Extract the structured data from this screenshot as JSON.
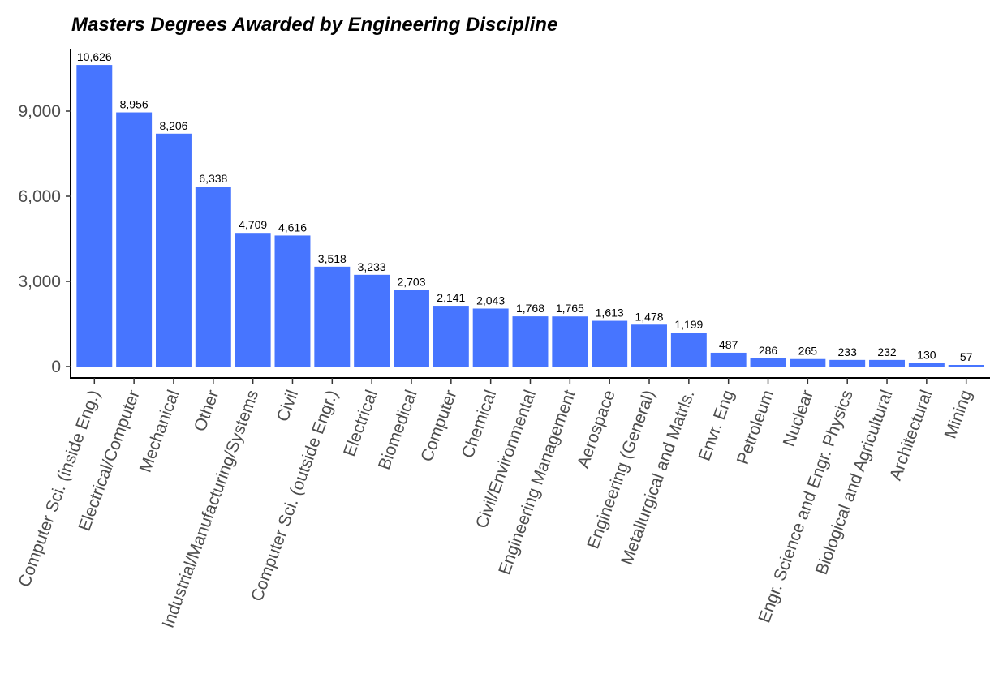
{
  "chart_data": {
    "type": "bar",
    "title": "Masters Degrees Awarded by Engineering Discipline",
    "xlabel": "",
    "ylabel": "",
    "categories": [
      "Computer Sci. (inside Eng.)",
      "Electrical/Computer",
      "Mechanical",
      "Other",
      "Industrial/Manufacturing/Systems",
      "Civil",
      "Computer Sci. (outside Engr.)",
      "Electrical",
      "Biomedical",
      "Computer",
      "Chemical",
      "Civil/Environmental",
      "Engineering Management",
      "Aerospace",
      "Engineering (General)",
      "Metallurgical and Matrls.",
      "Envr. Eng",
      "Petroleum",
      "Nuclear",
      "Engr. Science and Engr. Physics",
      "Biological and Agricultural",
      "Architectural",
      "Mining"
    ],
    "values": [
      10626,
      8956,
      8206,
      6338,
      4709,
      4616,
      3518,
      3233,
      2703,
      2141,
      2043,
      1768,
      1765,
      1613,
      1478,
      1199,
      487,
      286,
      265,
      233,
      232,
      130,
      57
    ],
    "data_labels": [
      "10,626",
      "8,956",
      "8,206",
      "6,338",
      "4,709",
      "4,616",
      "3,518",
      "3,233",
      "2,703",
      "2,141",
      "2,043",
      "1,768",
      "1,765",
      "1,613",
      "1,478",
      "1,199",
      "487",
      "286",
      "265",
      "233",
      "232",
      "130",
      "57"
    ],
    "yticks": [
      0,
      3000,
      6000,
      9000
    ],
    "ytick_labels": [
      "0",
      "3,000",
      "6,000",
      "9,000"
    ],
    "ylim": [
      -400,
      11200
    ],
    "grid": false,
    "legend": "none",
    "bar_color": "#4775FF"
  }
}
